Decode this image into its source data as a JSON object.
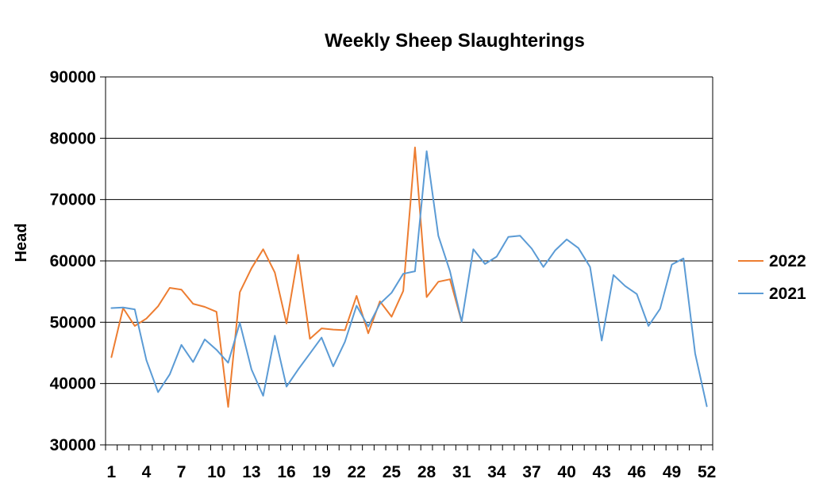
{
  "chart_data": {
    "type": "line",
    "title": "Weekly Sheep Slaughterings",
    "xlabel": "",
    "ylabel": "Head",
    "ylim": [
      30000,
      90000
    ],
    "y_ticks": [
      "30000",
      "40000",
      "50000",
      "60000",
      "70000",
      "80000",
      "90000"
    ],
    "x_range": [
      1,
      52
    ],
    "x_tick_labels": [
      "1",
      "4",
      "7",
      "10",
      "13",
      "16",
      "19",
      "22",
      "25",
      "28",
      "31",
      "34",
      "37",
      "40",
      "43",
      "46",
      "49",
      "52"
    ],
    "grid": "horizontal",
    "legend_position": "right",
    "colors": {
      "2022": "#ED7D31",
      "2021": "#5B9BD5"
    },
    "series": [
      {
        "name": "2022",
        "x": [
          1,
          2,
          3,
          4,
          5,
          6,
          7,
          8,
          9,
          10,
          11,
          12,
          13,
          14,
          15,
          16,
          17,
          18,
          19,
          20,
          21,
          22,
          23,
          24,
          25,
          26,
          27,
          28,
          29,
          30,
          31
        ],
        "values": [
          44300,
          52300,
          49400,
          50600,
          52600,
          55600,
          55300,
          53000,
          52500,
          51700,
          36200,
          54900,
          58800,
          61900,
          58100,
          49800,
          61000,
          47300,
          49000,
          48800,
          48700,
          54300,
          48200,
          53400,
          50900,
          55100,
          78500,
          54100,
          56600,
          57000,
          50100
        ]
      },
      {
        "name": "2021",
        "x": [
          1,
          2,
          3,
          4,
          5,
          6,
          7,
          8,
          9,
          10,
          11,
          12,
          13,
          14,
          15,
          16,
          17,
          18,
          19,
          20,
          21,
          22,
          23,
          24,
          25,
          26,
          27,
          28,
          29,
          30,
          31,
          32,
          33,
          34,
          35,
          36,
          37,
          38,
          39,
          40,
          41,
          42,
          43,
          44,
          45,
          46,
          47,
          48,
          49,
          50,
          51,
          52
        ],
        "values": [
          52300,
          52400,
          52100,
          43800,
          38600,
          41500,
          46300,
          43500,
          47200,
          45500,
          43400,
          49900,
          42300,
          38000,
          47800,
          39500,
          42300,
          44900,
          47500,
          42800,
          46800,
          52700,
          49300,
          53000,
          54800,
          57900,
          58300,
          77900,
          64100,
          58300,
          50100,
          61900,
          59500,
          60700,
          63900,
          64100,
          62000,
          59000,
          61700,
          63500,
          62100,
          59000,
          47000,
          57700,
          55900,
          54600,
          49400,
          52200,
          59400,
          60400,
          44900,
          36300
        ]
      }
    ]
  }
}
